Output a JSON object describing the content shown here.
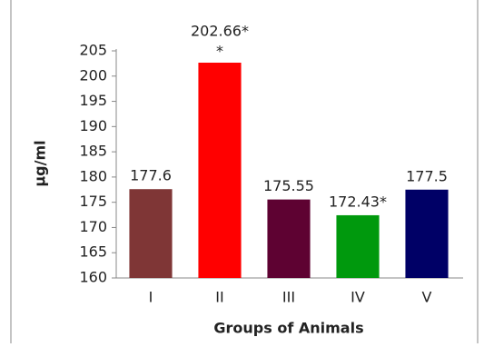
{
  "chart_data": {
    "type": "bar",
    "categories": [
      "I",
      "II",
      "III",
      "IV",
      "V"
    ],
    "values": [
      177.6,
      202.66,
      175.55,
      172.43,
      177.5
    ],
    "value_labels": [
      "177.6",
      "202.66*",
      "175.55",
      "172.43*",
      "177.5"
    ],
    "annotations": [
      "*"
    ],
    "colors": [
      "#7f3636",
      "#ff0000",
      "#5e0232",
      "#00990d",
      "#000066"
    ],
    "ylabel": "µg/ml",
    "xlabel": "Groups of Animals",
    "ylim": [
      160,
      205
    ],
    "yticks": [
      160,
      165,
      170,
      175,
      180,
      185,
      190,
      195,
      200,
      205
    ]
  }
}
